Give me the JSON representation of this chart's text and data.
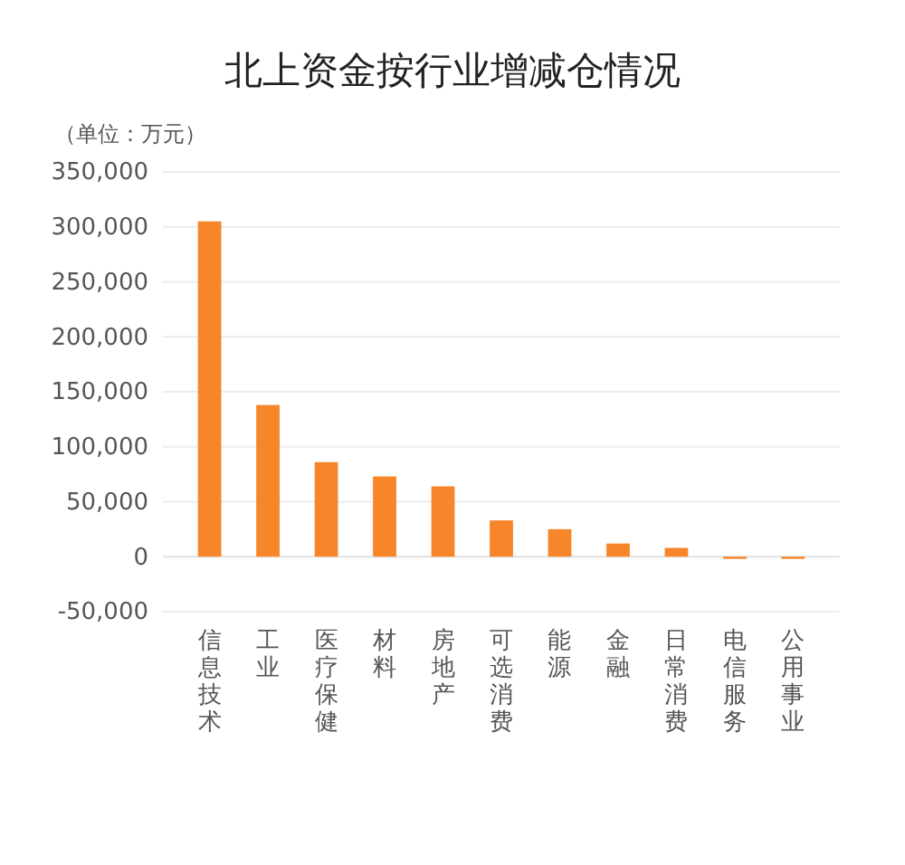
{
  "chart_data": {
    "type": "bar",
    "title": "北上资金按行业增减仓情况",
    "ylabel": "（单位：万元）",
    "categories": [
      "信息技术",
      "工业",
      "医疗保健",
      "材料",
      "房地产",
      "可选消费",
      "能源",
      "金融",
      "日常消费",
      "电信服务",
      "公用事业"
    ],
    "values": [
      305000,
      138000,
      86000,
      73000,
      64000,
      33000,
      25000,
      12000,
      8000,
      -2000,
      -2000
    ],
    "color": "#f7862a",
    "ylim": [
      -50000,
      350000
    ],
    "yticks": [
      {
        "value": -50000,
        "label": "-50,000"
      },
      0,
      {
        "value": 50000,
        "label": "50,000"
      },
      {
        "value": 100000,
        "label": "100,000"
      },
      {
        "value": 150000,
        "label": "150,000"
      },
      {
        "value": 200000,
        "label": "200,000"
      },
      {
        "value": 250000,
        "label": "250,000"
      },
      {
        "value": 300000,
        "label": "300,000"
      },
      {
        "value": 350000,
        "label": "350,000"
      }
    ],
    "grid": "y"
  }
}
